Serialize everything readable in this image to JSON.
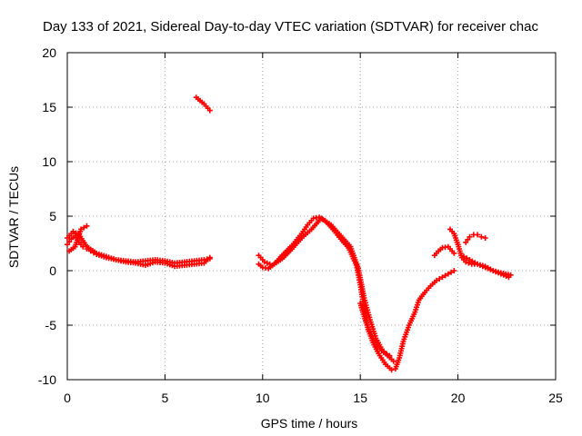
{
  "chart_data": {
    "type": "scatter",
    "title": "Day 133 of 2021, Sidereal Day-to-day VTEC variation (SDTVAR) for receiver chac",
    "xlabel": "GPS time / hours",
    "ylabel": "SDTVAR / TECUs",
    "xlim": [
      0,
      25
    ],
    "ylim": [
      -10,
      20
    ],
    "xticks": [
      "0",
      "5",
      "10",
      "15",
      "20",
      "25"
    ],
    "yticks": [
      "-10",
      "-5",
      "0",
      "5",
      "10",
      "15",
      "20"
    ],
    "grid": true,
    "marker": "+",
    "series": [
      {
        "name": "SDTVAR",
        "color": "#ff0000",
        "segments": [
          {
            "x": [
              0.0,
              0.2,
              0.4,
              0.6,
              0.8,
              1.0,
              1.2,
              1.5,
              2.0,
              2.5,
              3.0,
              3.5,
              4.0,
              4.5,
              5.0,
              5.5,
              6.0,
              6.5,
              7.0,
              7.3
            ],
            "y": [
              2.4,
              2.9,
              3.2,
              2.6,
              2.2,
              2.0,
              1.8,
              1.5,
              1.2,
              1.0,
              0.9,
              0.8,
              0.9,
              1.0,
              0.9,
              0.7,
              0.8,
              0.9,
              1.0,
              1.1
            ]
          },
          {
            "x": [
              0.0,
              0.3,
              0.6,
              1.0,
              1.5,
              2.0,
              2.5,
              3.0,
              3.5,
              4.0,
              4.5,
              5.0,
              5.5,
              6.0,
              6.5,
              7.0,
              7.3
            ],
            "y": [
              3.0,
              3.6,
              3.3,
              2.2,
              1.6,
              1.3,
              1.0,
              0.8,
              0.7,
              0.5,
              0.8,
              0.7,
              0.4,
              0.5,
              0.6,
              0.7,
              1.2
            ]
          },
          {
            "x": [
              0.1,
              0.4,
              0.7,
              1.0
            ],
            "y": [
              1.8,
              2.2,
              3.8,
              4.1
            ]
          },
          {
            "x": [
              6.6,
              6.8,
              7.0,
              7.2,
              7.3
            ],
            "y": [
              15.9,
              15.6,
              15.3,
              14.9,
              14.7
            ]
          },
          {
            "x": [
              9.8,
              10.0,
              10.3,
              10.6,
              11.0,
              11.5,
              12.0,
              12.3,
              12.6,
              12.9,
              13.2,
              13.6,
              14.0,
              14.4,
              14.8,
              15.0,
              15.2,
              15.4,
              15.7,
              16.0,
              16.3,
              16.6,
              16.8,
              17.0,
              17.2,
              17.5,
              17.8,
              18.0,
              18.3,
              18.6,
              18.9,
              19.2,
              19.5,
              19.8
            ],
            "y": [
              0.6,
              0.3,
              0.2,
              0.6,
              1.4,
              2.3,
              3.4,
              4.2,
              4.8,
              4.9,
              4.6,
              3.8,
              2.9,
              2.1,
              0.5,
              -1.3,
              -3.5,
              -5.4,
              -6.8,
              -7.8,
              -8.6,
              -9.1,
              -9.0,
              -8.0,
              -6.5,
              -5.0,
              -3.8,
              -2.7,
              -2.0,
              -1.4,
              -0.9,
              -0.6,
              -0.3,
              0.0
            ]
          },
          {
            "x": [
              9.8,
              10.1,
              10.5,
              11.0,
              11.5,
              12.0,
              12.5,
              13.0,
              13.5,
              14.0,
              14.5,
              14.9,
              15.2,
              15.5,
              15.8,
              16.1,
              16.4,
              16.7
            ],
            "y": [
              1.4,
              0.8,
              0.5,
              1.1,
              2.0,
              3.0,
              3.8,
              4.8,
              4.2,
              3.2,
              2.2,
              0.2,
              -2.5,
              -4.5,
              -6.2,
              -7.2,
              -7.8,
              -8.3
            ]
          },
          {
            "x": [
              15.0,
              15.3,
              15.6,
              15.9,
              16.2,
              16.5
            ],
            "y": [
              -3.0,
              -4.8,
              -6.0,
              -7.0,
              -7.5,
              -7.8
            ]
          },
          {
            "x": [
              19.6,
              19.8,
              20.0,
              20.2,
              20.4,
              20.7,
              21.0,
              21.4,
              21.8,
              22.2,
              22.6
            ],
            "y": [
              3.8,
              3.4,
              2.4,
              1.2,
              0.8,
              0.6,
              0.6,
              0.4,
              0.0,
              -0.3,
              -0.6
            ]
          },
          {
            "x": [
              18.8,
              19.0,
              19.2,
              19.5,
              19.8
            ],
            "y": [
              1.4,
              1.8,
              2.1,
              2.2,
              1.6
            ]
          },
          {
            "x": [
              20.4,
              20.6,
              20.8,
              21.0,
              21.2,
              21.4
            ],
            "y": [
              2.6,
              3.1,
              3.3,
              3.3,
              3.1,
              3.0
            ]
          },
          {
            "x": [
              20.3,
              20.6,
              21.0,
              21.4,
              21.8,
              22.2,
              22.7
            ],
            "y": [
              1.3,
              1.0,
              0.6,
              0.3,
              0.0,
              -0.2,
              -0.4
            ]
          }
        ]
      }
    ]
  }
}
